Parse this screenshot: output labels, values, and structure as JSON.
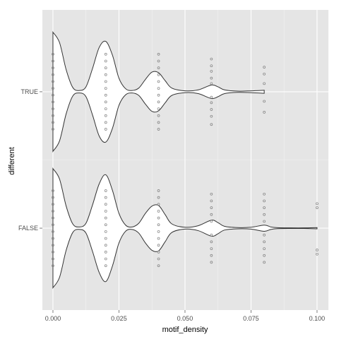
{
  "chart_data": {
    "type": "violin",
    "xlabel": "motif_density",
    "ylabel": "different",
    "xlim": [
      -0.004,
      0.1043
    ],
    "x_ticks": [
      0,
      0.025,
      0.05,
      0.075,
      0.1
    ],
    "x_tick_labels": [
      "0.000",
      "0.025",
      "0.050",
      "0.075",
      "0.100"
    ],
    "categories": [
      "FALSE",
      "TRUE"
    ],
    "grid": true,
    "violins": [
      {
        "category": "TRUE",
        "density_profile": [
          {
            "x": 0.0,
            "w": 0.97
          },
          {
            "x": 0.0025,
            "w": 0.8
          },
          {
            "x": 0.005,
            "w": 0.36
          },
          {
            "x": 0.0075,
            "w": 0.07
          },
          {
            "x": 0.01,
            "w": 0.02
          },
          {
            "x": 0.0125,
            "w": 0.08
          },
          {
            "x": 0.015,
            "w": 0.38
          },
          {
            "x": 0.0175,
            "w": 0.72
          },
          {
            "x": 0.02,
            "w": 0.82
          },
          {
            "x": 0.0225,
            "w": 0.6
          },
          {
            "x": 0.025,
            "w": 0.22
          },
          {
            "x": 0.0275,
            "w": 0.05
          },
          {
            "x": 0.03,
            "w": 0.02
          },
          {
            "x": 0.0325,
            "w": 0.06
          },
          {
            "x": 0.035,
            "w": 0.2
          },
          {
            "x": 0.0375,
            "w": 0.32
          },
          {
            "x": 0.04,
            "w": 0.31
          },
          {
            "x": 0.0425,
            "w": 0.18
          },
          {
            "x": 0.045,
            "w": 0.06
          },
          {
            "x": 0.05,
            "w": 0.015
          },
          {
            "x": 0.055,
            "w": 0.03
          },
          {
            "x": 0.06,
            "w": 0.11
          },
          {
            "x": 0.0625,
            "w": 0.08
          },
          {
            "x": 0.065,
            "w": 0.03
          },
          {
            "x": 0.07,
            "w": 0.01
          },
          {
            "x": 0.075,
            "w": 0.015
          },
          {
            "x": 0.08,
            "w": 0.025
          }
        ],
        "points": [
          {
            "x": 0.0,
            "y_offsets": [
              -0.55,
              -0.45,
              -0.35,
              -0.25,
              -0.15,
              -0.05,
              0.05,
              0.15,
              0.25,
              0.35,
              0.45,
              0.55
            ]
          },
          {
            "x": 0.02,
            "y_offsets": [
              -0.55,
              -0.45,
              -0.35,
              -0.25,
              -0.15,
              -0.05,
              0.05,
              0.15,
              0.25,
              0.35,
              0.45,
              0.55
            ]
          },
          {
            "x": 0.04,
            "y_offsets": [
              -0.55,
              -0.45,
              -0.35,
              -0.25,
              -0.15,
              -0.05,
              0.05,
              0.15,
              0.25,
              0.35,
              0.45,
              0.55
            ]
          },
          {
            "x": 0.06,
            "y_offsets": [
              -0.48,
              -0.38,
              -0.3,
              -0.2,
              -0.12,
              0.08,
              0.16,
              0.26,
              0.36,
              0.48
            ]
          },
          {
            "x": 0.08,
            "y_offsets": [
              -0.36,
              -0.26,
              -0.12,
              0.14,
              0.3
            ]
          }
        ]
      },
      {
        "category": "FALSE",
        "density_profile": [
          {
            "x": 0.0,
            "w": 0.97
          },
          {
            "x": 0.0025,
            "w": 0.8
          },
          {
            "x": 0.005,
            "w": 0.36
          },
          {
            "x": 0.0075,
            "w": 0.07
          },
          {
            "x": 0.01,
            "w": 0.02
          },
          {
            "x": 0.0125,
            "w": 0.08
          },
          {
            "x": 0.015,
            "w": 0.38
          },
          {
            "x": 0.0175,
            "w": 0.72
          },
          {
            "x": 0.02,
            "w": 0.87
          },
          {
            "x": 0.0225,
            "w": 0.62
          },
          {
            "x": 0.025,
            "w": 0.24
          },
          {
            "x": 0.0275,
            "w": 0.05
          },
          {
            "x": 0.03,
            "w": 0.02
          },
          {
            "x": 0.0325,
            "w": 0.08
          },
          {
            "x": 0.035,
            "w": 0.24
          },
          {
            "x": 0.0375,
            "w": 0.36
          },
          {
            "x": 0.04,
            "w": 0.37
          },
          {
            "x": 0.0425,
            "w": 0.22
          },
          {
            "x": 0.045,
            "w": 0.07
          },
          {
            "x": 0.05,
            "w": 0.015
          },
          {
            "x": 0.055,
            "w": 0.04
          },
          {
            "x": 0.06,
            "w": 0.13
          },
          {
            "x": 0.0625,
            "w": 0.09
          },
          {
            "x": 0.065,
            "w": 0.03
          },
          {
            "x": 0.07,
            "w": 0.01
          },
          {
            "x": 0.075,
            "w": 0.015
          },
          {
            "x": 0.08,
            "w": 0.05
          },
          {
            "x": 0.0825,
            "w": 0.02
          },
          {
            "x": 0.085,
            "w": 0.008
          },
          {
            "x": 0.09,
            "w": 0.005
          },
          {
            "x": 0.095,
            "w": 0.005
          },
          {
            "x": 0.1,
            "w": 0.01
          }
        ],
        "points": [
          {
            "x": 0.0,
            "y_offsets": [
              -0.55,
              -0.45,
              -0.35,
              -0.25,
              -0.15,
              -0.05,
              0.05,
              0.15,
              0.25,
              0.35,
              0.45,
              0.55
            ]
          },
          {
            "x": 0.02,
            "y_offsets": [
              -0.55,
              -0.45,
              -0.35,
              -0.25,
              -0.15,
              -0.05,
              0.05,
              0.15,
              0.25,
              0.35,
              0.45,
              0.55
            ]
          },
          {
            "x": 0.04,
            "y_offsets": [
              -0.55,
              -0.45,
              -0.35,
              -0.25,
              -0.15,
              -0.05,
              0.05,
              0.15,
              0.25,
              0.35,
              0.45,
              0.55
            ]
          },
          {
            "x": 0.06,
            "y_offsets": [
              -0.5,
              -0.4,
              -0.3,
              -0.2,
              -0.1,
              0.1,
              0.2,
              0.3,
              0.4,
              0.5
            ]
          },
          {
            "x": 0.08,
            "y_offsets": [
              -0.5,
              -0.4,
              -0.3,
              -0.2,
              -0.1,
              0.1,
              0.2,
              0.3,
              0.4,
              0.5
            ]
          },
          {
            "x": 0.1,
            "y_offsets": [
              -0.36,
              -0.3,
              0.32,
              0.38
            ]
          }
        ]
      }
    ]
  }
}
